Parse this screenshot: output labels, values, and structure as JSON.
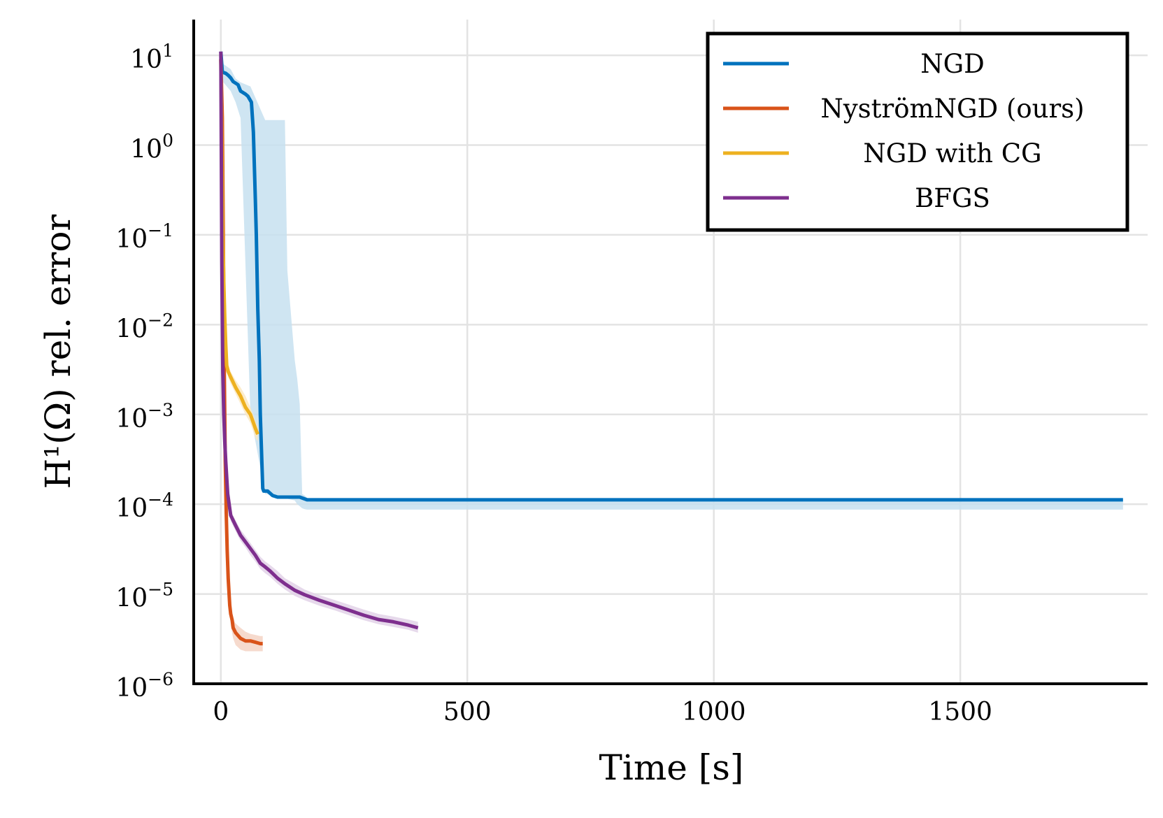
{
  "chart_data": {
    "type": "line",
    "title": "",
    "xlabel": "Time [s]",
    "ylabel": "H¹(Ω) rel. error",
    "xlim": [
      -55,
      1880
    ],
    "ylim": [
      1e-06,
      25
    ],
    "yscale": "log",
    "grid": true,
    "legend_position": "top-right",
    "x_ticks": [
      {
        "value": 0,
        "label": "0"
      },
      {
        "value": 500,
        "label": "500"
      },
      {
        "value": 1000,
        "label": "1000"
      },
      {
        "value": 1500,
        "label": "1500"
      }
    ],
    "y_ticks": [
      {
        "value": 10,
        "base": "10",
        "exp": "1"
      },
      {
        "value": 1,
        "base": "10",
        "exp": "0"
      },
      {
        "value": 0.1,
        "base": "10",
        "exp": "−1"
      },
      {
        "value": 0.01,
        "base": "10",
        "exp": "−2"
      },
      {
        "value": 0.001,
        "base": "10",
        "exp": "−3"
      },
      {
        "value": 0.0001,
        "base": "10",
        "exp": "−4"
      },
      {
        "value": 1e-05,
        "base": "10",
        "exp": "−5"
      },
      {
        "value": 1e-06,
        "base": "10",
        "exp": "−6"
      }
    ],
    "series": [
      {
        "name": "NGD",
        "color": "#0072bd",
        "band_color": "#c7e0f0",
        "x": [
          0,
          3,
          10,
          15,
          20,
          25,
          35,
          40,
          50,
          55,
          62,
          66,
          70,
          72,
          75,
          78,
          80,
          83,
          85,
          87,
          95,
          105,
          115,
          130,
          145,
          160,
          175,
          180,
          200,
          400,
          1000,
          1500,
          1830
        ],
        "y": [
          11,
          6.5,
          6.3,
          6.0,
          5.6,
          5.1,
          4.7,
          4.0,
          3.7,
          3.5,
          3.0,
          1.4,
          0.25,
          0.1,
          0.015,
          0.004,
          0.001,
          0.00032,
          0.00015,
          0.00014,
          0.00014,
          0.000125,
          0.00012,
          0.00012,
          0.00012,
          0.00012,
          0.000112,
          0.000112,
          0.000112,
          0.000112,
          0.000112,
          0.000112,
          0.000112
        ],
        "band_x": [
          0,
          5,
          20,
          30,
          40,
          60,
          90,
          130,
          135,
          150,
          155,
          160,
          165,
          170,
          175,
          180,
          200,
          400,
          1000,
          1500,
          1830
        ],
        "band_high": [
          11,
          8,
          7,
          5.5,
          5.0,
          4.5,
          1.9,
          1.9,
          0.04,
          0.004,
          0.0025,
          0.0013,
          0.00013,
          0.000125,
          0.000118,
          0.000115,
          0.000115,
          0.000115,
          0.000115,
          0.000115,
          0.000115
        ],
        "band_low": [
          11,
          5,
          4,
          3,
          2,
          0.001,
          0.00013,
          0.00012,
          0.000115,
          0.00011,
          0.0001,
          9.5e-05,
          9e-05,
          8.8e-05,
          8.7e-05,
          8.7e-05,
          8.7e-05,
          8.7e-05,
          8.7e-05,
          8.7e-05,
          8.7e-05
        ]
      },
      {
        "name": "NyströmNGD (ours)",
        "color": "#d95319",
        "band_color": "#f5d4c4",
        "x": [
          0,
          3,
          5,
          7,
          9,
          11,
          13,
          15,
          18,
          20,
          23,
          25,
          30,
          40,
          50,
          60,
          70,
          80,
          85
        ],
        "y": [
          9,
          2,
          0.1,
          0.003,
          0.0003,
          8e-05,
          3e-05,
          1.5e-05,
          7.5e-06,
          6e-06,
          5.1e-06,
          4.2e-06,
          3.7e-06,
          3.2e-06,
          3e-06,
          3e-06,
          2.9e-06,
          2.8e-06,
          2.8e-06
        ],
        "band_x": [
          0,
          3,
          5,
          7,
          9,
          11,
          13,
          15,
          18,
          20,
          25,
          30,
          40,
          50,
          60,
          70,
          80,
          85
        ],
        "band_high": [
          9,
          2,
          0.12,
          0.004,
          0.0004,
          0.0001,
          4e-05,
          2e-05,
          9e-06,
          7.2e-06,
          5.2e-06,
          4.7e-06,
          4.2e-06,
          3.8e-06,
          3.6e-06,
          3.5e-06,
          3.4e-06,
          3.4e-06
        ],
        "band_low": [
          9,
          2,
          0.08,
          0.002,
          0.0002,
          6e-05,
          2e-05,
          1.1e-05,
          6e-06,
          4.5e-06,
          3.2e-06,
          2.7e-06,
          2.4e-06,
          2.3e-06,
          2.3e-06,
          2.3e-06,
          2.3e-06,
          2.3e-06
        ]
      },
      {
        "name": "NGD with CG",
        "color": "#edb120",
        "band_color": "#fbe9c2",
        "x": [
          0,
          2,
          4,
          6,
          8,
          10,
          12,
          15,
          20,
          30,
          40,
          50,
          60,
          70,
          75
        ],
        "y": [
          9,
          1,
          0.1,
          0.03,
          0.012,
          0.006,
          0.0035,
          0.003,
          0.0026,
          0.002,
          0.0016,
          0.0012,
          0.001,
          0.0007,
          0.0006
        ],
        "band_x": [
          0,
          2,
          4,
          6,
          8,
          10,
          12,
          15,
          20,
          30,
          40,
          50,
          60,
          70,
          75
        ],
        "band_high": [
          9,
          1.1,
          0.12,
          0.035,
          0.014,
          0.007,
          0.0045,
          0.0036,
          0.003,
          0.0024,
          0.002,
          0.0016,
          0.0012,
          0.00085,
          0.0007
        ],
        "band_low": [
          9,
          0.9,
          0.08,
          0.025,
          0.01,
          0.005,
          0.003,
          0.0026,
          0.0022,
          0.0017,
          0.0013,
          0.001,
          0.0008,
          0.00055,
          0.0005
        ]
      },
      {
        "name": "BFGS",
        "color": "#7e2f8e",
        "band_color": "#e2d2e8",
        "x": [
          0,
          2,
          4,
          6,
          8,
          10,
          14,
          20,
          30,
          40,
          50,
          60,
          70,
          80,
          90,
          100,
          115,
          130,
          150,
          170,
          200,
          230,
          260,
          290,
          320,
          350,
          380,
          400
        ],
        "y": [
          11,
          0.05,
          0.003,
          0.001,
          0.0005,
          0.0003,
          0.00013,
          7.5e-05,
          5.8e-05,
          4.5e-05,
          3.8e-05,
          3.2e-05,
          2.7e-05,
          2.2e-05,
          2e-05,
          1.8e-05,
          1.5e-05,
          1.3e-05,
          1.1e-05,
          9.8e-06,
          8.5e-06,
          7.5e-06,
          6.6e-06,
          5.8e-06,
          5.2e-06,
          4.9e-06,
          4.5e-06,
          4.2e-06
        ],
        "band_x": [
          0,
          2,
          4,
          6,
          8,
          10,
          14,
          20,
          30,
          40,
          50,
          60,
          70,
          80,
          90,
          100,
          115,
          130,
          150,
          170,
          200,
          230,
          260,
          290,
          320,
          350,
          380,
          400
        ],
        "band_high": [
          11,
          0.06,
          0.004,
          0.0013,
          0.0006,
          0.00035,
          0.00015,
          8.5e-05,
          6.6e-05,
          5.2e-05,
          4.4e-05,
          3.7e-05,
          3.1e-05,
          2.6e-05,
          2.3e-05,
          2.1e-05,
          1.8e-05,
          1.5e-05,
          1.3e-05,
          1.12e-05,
          9.7e-06,
          8.6e-06,
          7.6e-06,
          6.7e-06,
          6e-06,
          5.6e-06,
          5.2e-06,
          4.9e-06
        ],
        "band_low": [
          11,
          0.04,
          0.0025,
          0.0008,
          0.0004,
          0.00025,
          0.00011,
          6.5e-05,
          5e-05,
          3.9e-05,
          3.3e-05,
          2.7e-05,
          2.3e-05,
          1.9e-05,
          1.7e-05,
          1.55e-05,
          1.3e-05,
          1.12e-05,
          9.5e-06,
          8.5e-06,
          7.4e-06,
          6.6e-06,
          5.8e-06,
          5.1e-06,
          4.6e-06,
          4.3e-06,
          4e-06,
          3.7e-06
        ]
      }
    ]
  }
}
